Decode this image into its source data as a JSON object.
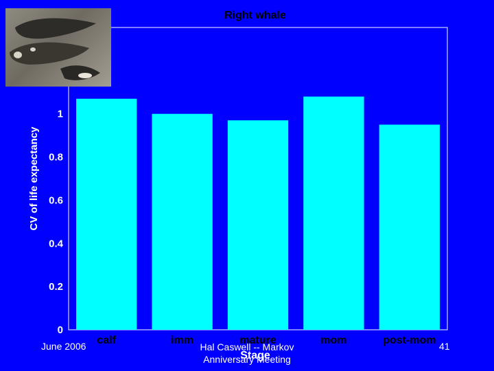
{
  "chart_data": {
    "type": "bar",
    "title": "Right whale",
    "xlabel": "Stage",
    "ylabel": "CV of life expectancy",
    "categories": [
      "calf",
      "imm",
      "mature",
      "mom",
      "post-mom"
    ],
    "values": [
      1.07,
      1.0,
      0.97,
      1.08,
      0.95
    ],
    "ylim": [
      0,
      1.4
    ],
    "yticks": [
      "0",
      "0.2",
      "0.4",
      "0.6",
      "0.8",
      "1"
    ],
    "bar_color": "#00ffff",
    "grid": false
  },
  "footer": {
    "date": "June 2006",
    "center_line1": "Hal Caswell -- Markov",
    "center_line2": "Anniversary Meeting",
    "page": "41"
  },
  "colors": {
    "background": "#0000ff",
    "text": "#ffffff",
    "bar": "#00ffff"
  },
  "image": {
    "subject": "whale-illustration"
  }
}
